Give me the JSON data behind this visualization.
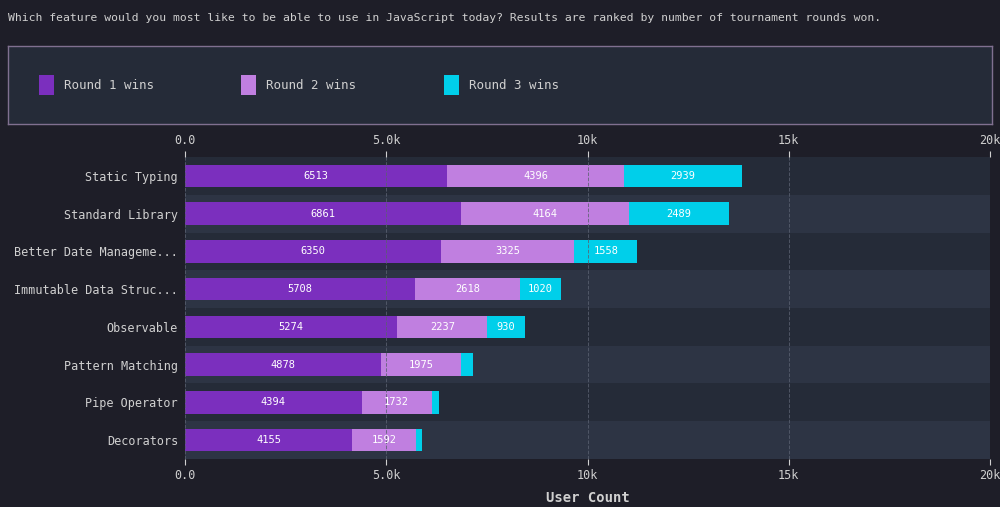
{
  "title": "Which feature would you most like to be able to use in JavaScript today? Results are ranked by number of tournament rounds won.",
  "xlabel": "User Count",
  "categories": [
    "Static Typing",
    "Standard Library",
    "Better Date Manageme...",
    "Immutable Data Struc...",
    "Observable",
    "Pattern Matching",
    "Pipe Operator",
    "Decorators"
  ],
  "round1": [
    6513,
    6861,
    6350,
    5708,
    5274,
    4878,
    4394,
    4155
  ],
  "round2": [
    4396,
    4164,
    3325,
    2618,
    2237,
    1975,
    1732,
    1592
  ],
  "round3": [
    2939,
    2489,
    1558,
    1020,
    930,
    300,
    180,
    150
  ],
  "round3_labels": [
    "2939",
    "2489",
    "1558",
    "1020",
    "930",
    null,
    null,
    null
  ],
  "color_round1": "#7B2FBE",
  "color_round2": "#C07FE0",
  "color_round3": "#00CFEA",
  "bg_outer": "#1e1e28",
  "bg_chart_even": "#252b38",
  "bg_chart_odd": "#2d3444",
  "text_color": "#d0d0d0",
  "grid_color": "#5a6070",
  "legend_bg": "#252b38",
  "legend_border": "#807090",
  "xticks": [
    0,
    5000,
    10000,
    15000,
    20000
  ],
  "xtick_labels": [
    "0.0",
    "5.0k",
    "10k",
    "15k",
    "20k"
  ],
  "xlim": [
    0,
    20000
  ]
}
